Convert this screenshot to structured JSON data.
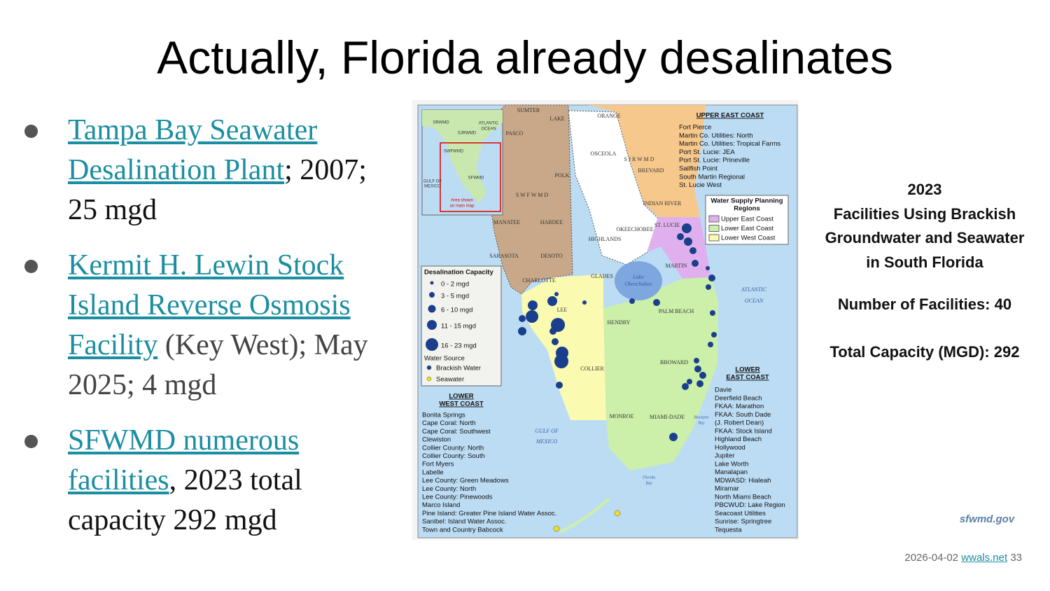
{
  "title": "Actually, Florida already desalinates",
  "bullets": [
    {
      "link": "Tampa Bay Seawater Desalination Plant",
      "text": "; 2007; 25 mgd"
    },
    {
      "link": "Kermit H. Lewin Stock Island Reverse Osmosis Facility",
      "text": " (Key West); May 2025; 4 mgd"
    },
    {
      "link": "SFWMD numerous facilities",
      "text": ", 2023 total capacity 292 mgd"
    }
  ],
  "map": {
    "upper_east_coast": {
      "title": "UPPER EAST COAST",
      "items": [
        "Fort Pierce",
        "Martin Co. Utilities: North",
        "Martin Co. Utilities: Tropical Farms",
        "Port St. Lucie: JEA",
        "Port St. Lucie: Prineville",
        "Sailfish Point",
        "South Martin Regional",
        "St. Lucie West"
      ]
    },
    "regions_legend": {
      "title": [
        "Water Supply Planning",
        "Regions"
      ],
      "items": [
        "Upper East Coast",
        "Lower East Coast",
        "Lower West Coast"
      ]
    },
    "capacity_legend": {
      "title": "Desalination Capacity",
      "sizes": [
        "0 - 2 mgd",
        "3 - 5 mgd",
        "6 - 10 mgd",
        "11 - 15 mgd",
        "16 - 23 mgd"
      ],
      "source_title": "Water Source",
      "sources": [
        "Brackish Water",
        "Seawater"
      ]
    },
    "lower_west_coast": {
      "title": [
        "LOWER",
        "WEST COAST"
      ],
      "items": [
        "Bonita Springs",
        "Cape Coral: North",
        "Cape Coral: Southwest",
        "Clewiston",
        "Collier County: North",
        "Collier County: South",
        "Fort Myers",
        "Labelle",
        "Lee County: Green Meadows",
        "Lee County: North",
        "Lee County: Pinewoods",
        "Marco Island",
        "Pine Island: Greater Pine Island Water Assoc.",
        "Sanibel: Island Water Assoc.",
        "Town and Country Babcock"
      ]
    },
    "lower_east_coast": {
      "title": [
        "LOWER",
        "EAST COAST"
      ],
      "items": [
        "Davie",
        "Deerfield Beach",
        "FKAA: Marathon",
        "FKAA: South Dade",
        "(J. Robert Dean)",
        "FKAA: Stock Island",
        "Highland Beach",
        "Hollywood",
        "Jupiter",
        "Lake Worth",
        "Manalapan",
        "MDWASD: Hialeah",
        "Miramar",
        "North Miami Beach",
        "PBCWUD: Lake Region",
        "Seacoast Utilities",
        "Sunrise: Springtree",
        "Tequesta"
      ]
    },
    "labels": [
      "SUMTER",
      "LAKE",
      "ORANGE",
      "OSCEOLA",
      "S J R W M D",
      "BREVARD",
      "PASCO",
      "POLK",
      "S W F W M D",
      "INDIAN RIVER",
      "MANATEE",
      "HARDEE",
      "OKEECHOBEE",
      "ST. LUCIE",
      "HIGHLANDS",
      "SARASOTA",
      "DESOTO",
      "MARTIN",
      "GLADES",
      "CHARLOTTE",
      "Lake",
      "Okeechobee",
      "ATLANTIC",
      "OCEAN",
      "PALM BEACH",
      "LEE",
      "HENDRY",
      "BROWARD",
      "COLLIER",
      "GULF OF",
      "MEXICO",
      "MONROE",
      "MIAMI-DADE",
      "Biscayne",
      "Bay",
      "Florida",
      "Bay"
    ],
    "inset_labels": [
      "SRWMD",
      "SJRWMD",
      "SWFWMD",
      "SFWMD",
      "ATLANTIC",
      "OCEAN",
      "GULF OF",
      "MEXICO",
      "Area shown",
      "on main map"
    ],
    "logo": "sfwmd.gov"
  },
  "info": {
    "heading": [
      "2023",
      "Facilities Using Brackish",
      "Groundwater and Seawater",
      "in South Florida"
    ],
    "facilities": "Number of Facilities: 40",
    "capacity": "Total Capacity (MGD): 292"
  },
  "footer": {
    "date": "2026-04-02",
    "link": "wwals.net",
    "page": "33"
  }
}
